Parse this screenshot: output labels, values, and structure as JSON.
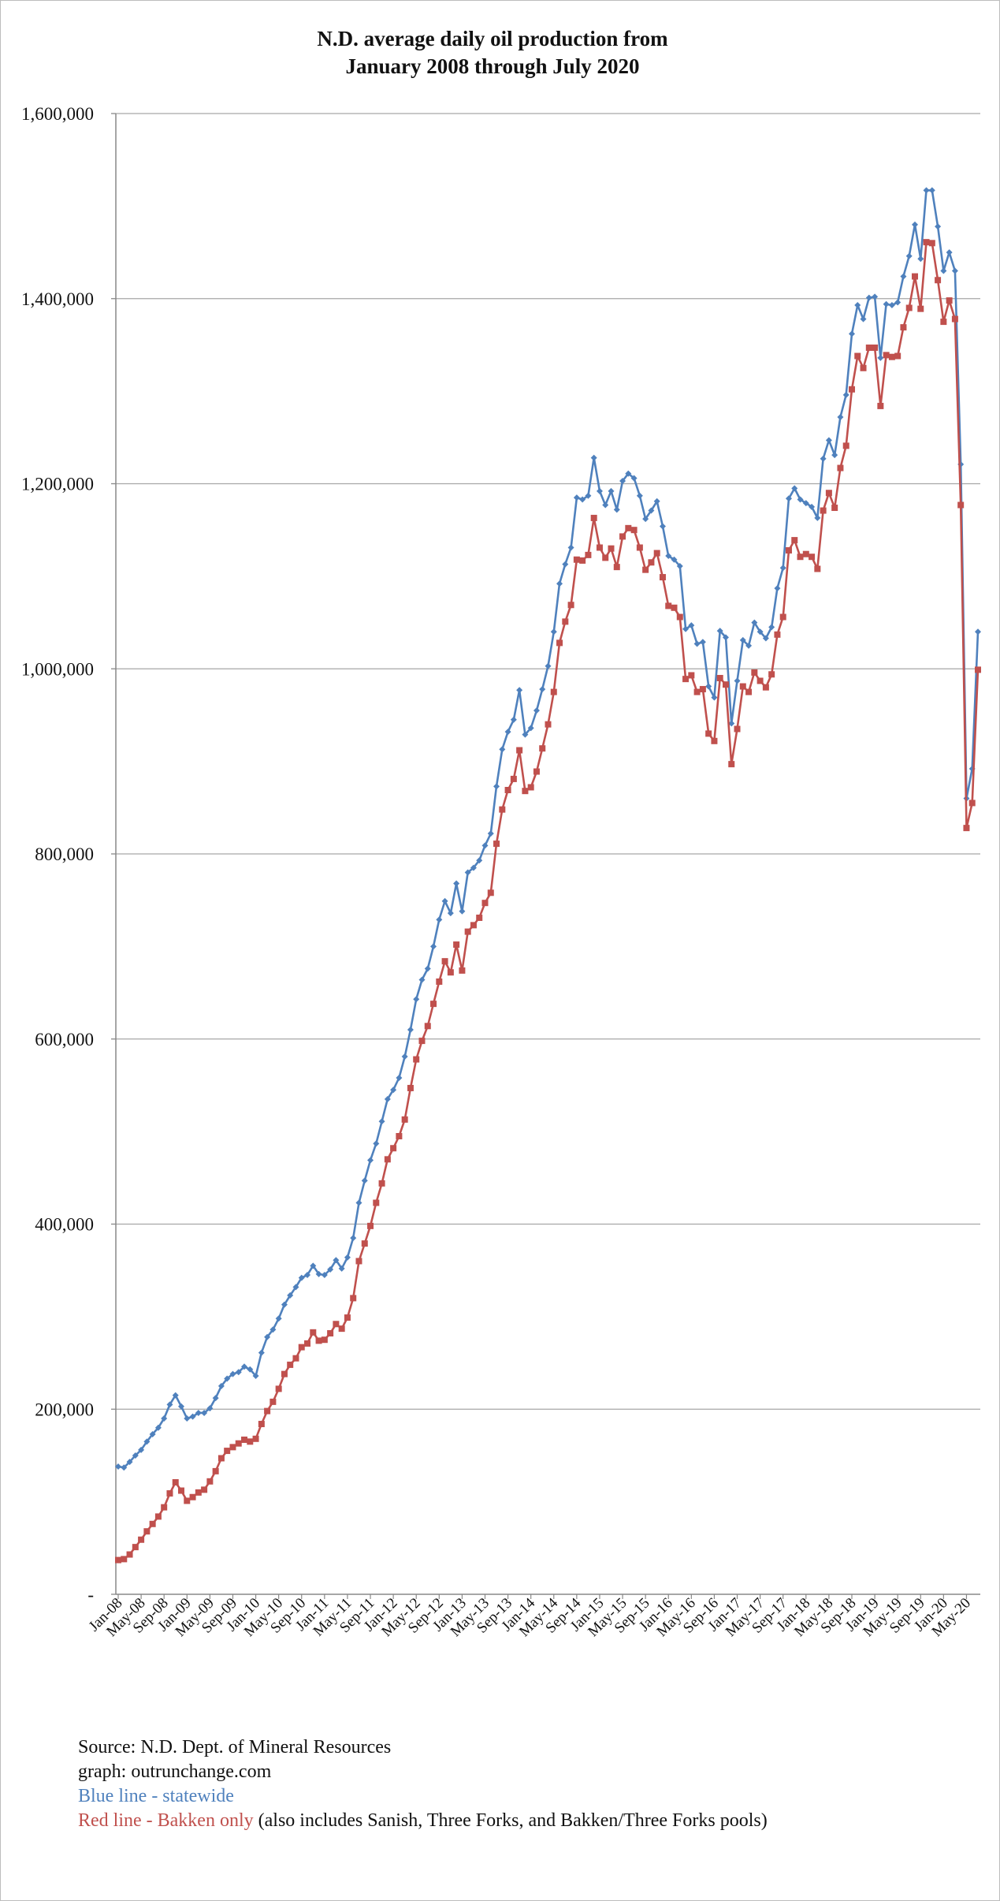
{
  "chart_data": {
    "type": "line",
    "title": [
      "N.D. average daily oil production from",
      "January 2008 through July 2020"
    ],
    "ylim": [
      0,
      1600000
    ],
    "y_ticks": [
      0,
      200000,
      400000,
      600000,
      800000,
      1000000,
      1200000,
      1400000,
      1600000
    ],
    "y_tick_labels": [
      "-",
      "200,000",
      "400,000",
      "600,000",
      "800,000",
      "1,000,000",
      "1,200,000",
      "1,400,000",
      "1,600,000"
    ],
    "x_tick_labels": [
      "Jan-08",
      "May-08",
      "Sep-08",
      "Jan-09",
      "May-09",
      "Sep-09",
      "Jan-10",
      "May-10",
      "Sep-10",
      "Jan-11",
      "May-11",
      "Sep-11",
      "Jan-12",
      "May-12",
      "Sep-12",
      "Jan-13",
      "May-13",
      "Sep-13",
      "Jan-14",
      "May-14",
      "Sep-14",
      "Jan-15",
      "May-15",
      "Sep-15",
      "Jan-16",
      "May-16",
      "Sep-16",
      "Jan-17",
      "May-17",
      "Sep-17",
      "Jan-18",
      "May-18",
      "Sep-18",
      "Jan-19",
      "May-19",
      "Sep-19",
      "Jan-20",
      "May-20"
    ],
    "grid": "horizontal",
    "legend": "none",
    "months": 151,
    "series": [
      {
        "color": "#4f81bd",
        "marker": "diamond",
        "values": [
          138000,
          137000,
          143000,
          150000,
          156000,
          165000,
          173000,
          180000,
          190000,
          205000,
          215000,
          203000,
          190000,
          192000,
          196000,
          196000,
          201000,
          212000,
          225000,
          233000,
          238000,
          240000,
          246000,
          243000,
          236000,
          261000,
          278000,
          286000,
          298000,
          313000,
          323000,
          332000,
          342000,
          345000,
          355000,
          346000,
          345000,
          351000,
          361000,
          352000,
          364000,
          385000,
          423000,
          447000,
          469000,
          487000,
          511000,
          535000,
          545000,
          558000,
          581000,
          610000,
          643000,
          664000,
          676000,
          700000,
          729000,
          749000,
          736000,
          768000,
          738000,
          780000,
          785000,
          793000,
          809000,
          822000,
          873000,
          913000,
          932000,
          945000,
          977000,
          929000,
          936000,
          955000,
          978000,
          1003000,
          1040000,
          1092000,
          1113000,
          1131000,
          1185000,
          1183000,
          1187000,
          1228000,
          1192000,
          1177000,
          1192000,
          1172000,
          1203000,
          1211000,
          1206000,
          1187000,
          1162000,
          1171000,
          1181000,
          1154000,
          1122000,
          1118000,
          1111000,
          1043000,
          1047000,
          1027000,
          1029000,
          981000,
          969000,
          1041000,
          1034000,
          941000,
          987000,
          1031000,
          1025000,
          1050000,
          1040000,
          1033000,
          1045000,
          1087000,
          1109000,
          1184000,
          1195000,
          1183000,
          1179000,
          1175000,
          1163000,
          1227000,
          1247000,
          1231000,
          1272000,
          1296000,
          1362000,
          1393000,
          1378000,
          1401000,
          1402000,
          1336000,
          1394000,
          1393000,
          1396000,
          1424000,
          1446000,
          1480000,
          1443000,
          1517000,
          1517000,
          1478000,
          1430000,
          1450000,
          1430000,
          1221000,
          860000,
          892000,
          1040000
        ]
      },
      {
        "color": "#c0504d",
        "marker": "square",
        "values": [
          37000,
          38000,
          43000,
          51000,
          59000,
          68000,
          76000,
          84000,
          94000,
          109000,
          121000,
          112000,
          101000,
          105000,
          110000,
          113000,
          122000,
          133000,
          147000,
          155000,
          159000,
          163000,
          167000,
          165000,
          168000,
          184000,
          198000,
          208000,
          222000,
          238000,
          248000,
          255000,
          267000,
          271000,
          283000,
          274000,
          275000,
          282000,
          292000,
          287000,
          299000,
          320000,
          360000,
          379000,
          398000,
          423000,
          444000,
          470000,
          482000,
          495000,
          513000,
          547000,
          578000,
          598000,
          614000,
          638000,
          662000,
          684000,
          672000,
          702000,
          674000,
          716000,
          723000,
          731000,
          747000,
          758000,
          811000,
          848000,
          869000,
          881000,
          912000,
          868000,
          872000,
          889000,
          914000,
          940000,
          975000,
          1028000,
          1051000,
          1069000,
          1118000,
          1117000,
          1123000,
          1163000,
          1131000,
          1120000,
          1130000,
          1110000,
          1143000,
          1152000,
          1150000,
          1131000,
          1107000,
          1115000,
          1125000,
          1099000,
          1068000,
          1066000,
          1056000,
          989000,
          993000,
          975000,
          978000,
          930000,
          922000,
          990000,
          983000,
          897000,
          935000,
          981000,
          975000,
          996000,
          987000,
          980000,
          994000,
          1037000,
          1056000,
          1128000,
          1139000,
          1121000,
          1124000,
          1121000,
          1108000,
          1171000,
          1190000,
          1174000,
          1217000,
          1241000,
          1302000,
          1338000,
          1325000,
          1347000,
          1347000,
          1284000,
          1339000,
          1337000,
          1338000,
          1369000,
          1390000,
          1424000,
          1389000,
          1461000,
          1460000,
          1420000,
          1375000,
          1398000,
          1378000,
          1177000,
          828000,
          855000,
          999000
        ]
      }
    ]
  },
  "footer": {
    "source": "Source: N.D. Dept. of Mineral Resources",
    "graph": "graph: outrunchange.com",
    "blue_label": "Blue line - statewide",
    "red_label": "Red line - Bakken only",
    "red_note": " (also includes Sanish, Three Forks, and Bakken/Three Forks pools)"
  }
}
